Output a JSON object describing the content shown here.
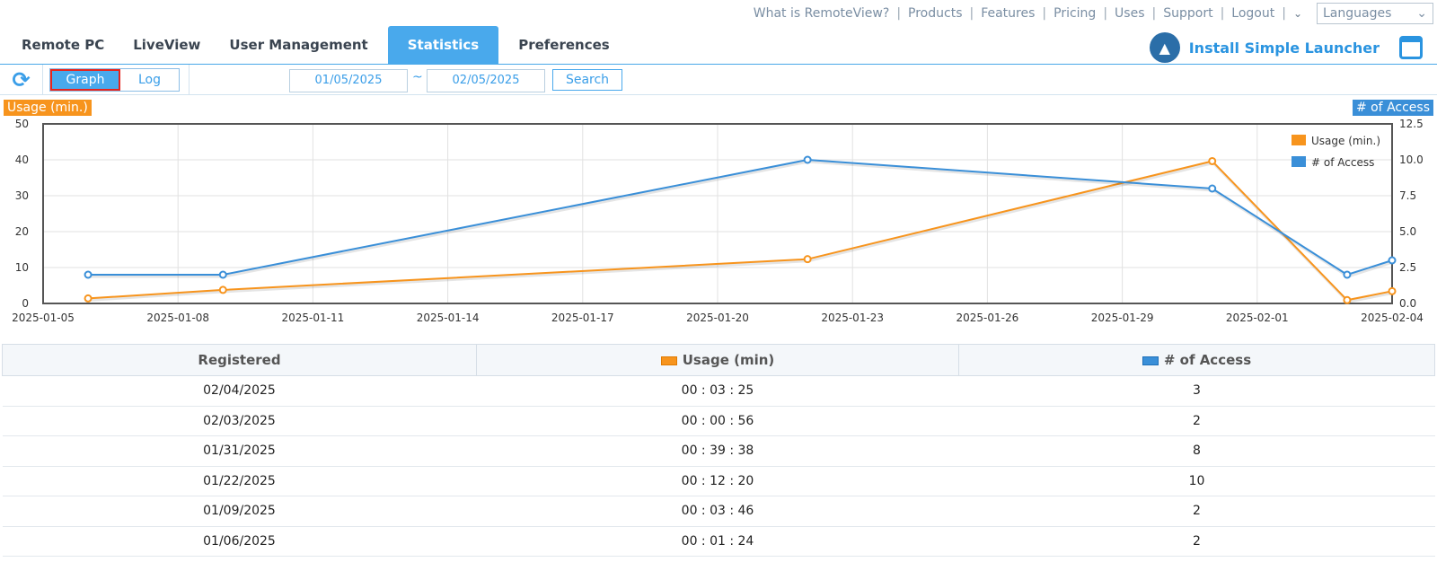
{
  "topnav": {
    "links": [
      "What is RemoteView?",
      "Products",
      "Features",
      "Pricing",
      "Uses",
      "Support",
      "Logout"
    ],
    "languages_label": "Languages"
  },
  "tabs": [
    {
      "label": "Remote PC",
      "active": false
    },
    {
      "label": "LiveView",
      "active": false
    },
    {
      "label": "User Management",
      "active": false
    },
    {
      "label": "Statistics",
      "active": true
    },
    {
      "label": "Preferences",
      "active": false
    }
  ],
  "launcher": {
    "label": "Install Simple Launcher"
  },
  "toolbar": {
    "graph_label": "Graph",
    "log_label": "Log",
    "start_date": "01/05/2025",
    "tilde": "~",
    "end_date": "02/05/2025",
    "search_label": "Search"
  },
  "chart_data": {
    "type": "line",
    "left_axis_label": "Usage (min.)",
    "right_axis_label": "# of Access",
    "x_ticks": [
      "2025-01-05",
      "2025-01-08",
      "2025-01-11",
      "2025-01-14",
      "2025-01-17",
      "2025-01-20",
      "2025-01-23",
      "2025-01-26",
      "2025-01-29",
      "2025-02-01",
      "2025-02-04"
    ],
    "x_range": [
      "2025-01-05",
      "2025-02-04"
    ],
    "y_left_ticks": [
      "0",
      "10",
      "20",
      "30",
      "40",
      "50"
    ],
    "y_left_range": [
      0,
      50
    ],
    "y_right_ticks": [
      "0.0",
      "2.5",
      "5.0",
      "7.5",
      "10.0",
      "12.5"
    ],
    "y_right_range": [
      0,
      12.5
    ],
    "grid": true,
    "legend_position": "top-right",
    "series": [
      {
        "name": "Usage (min.)",
        "axis": "left",
        "color": "#f7941d",
        "points": [
          {
            "x": "2025-01-06",
            "y": 1.4
          },
          {
            "x": "2025-01-09",
            "y": 3.77
          },
          {
            "x": "2025-01-22",
            "y": 12.33
          },
          {
            "x": "2025-01-31",
            "y": 39.63
          },
          {
            "x": "2025-02-03",
            "y": 0.93
          },
          {
            "x": "2025-02-04",
            "y": 3.42
          }
        ]
      },
      {
        "name": "# of Access",
        "axis": "right",
        "color": "#3a8fd8",
        "points": [
          {
            "x": "2025-01-06",
            "y": 2
          },
          {
            "x": "2025-01-09",
            "y": 2
          },
          {
            "x": "2025-01-22",
            "y": 10
          },
          {
            "x": "2025-01-31",
            "y": 8
          },
          {
            "x": "2025-02-03",
            "y": 2
          },
          {
            "x": "2025-02-04",
            "y": 3
          }
        ]
      }
    ]
  },
  "table": {
    "headers": [
      "Registered",
      "Usage (min)",
      "# of Access"
    ],
    "rows": [
      [
        "02/04/2025",
        "00 : 03 : 25",
        "3"
      ],
      [
        "02/03/2025",
        "00 : 00 : 56",
        "2"
      ],
      [
        "01/31/2025",
        "00 : 39 : 38",
        "8"
      ],
      [
        "01/22/2025",
        "00 : 12 : 20",
        "10"
      ],
      [
        "01/09/2025",
        "00 : 03 : 46",
        "2"
      ],
      [
        "01/06/2025",
        "00 : 01 : 24",
        "2"
      ]
    ]
  }
}
